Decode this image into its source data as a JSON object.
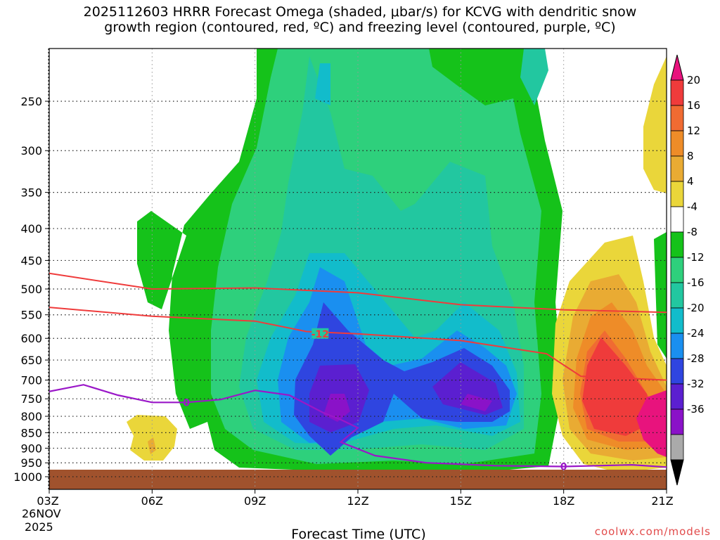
{
  "title": {
    "line1": "2025112603 HRRR Forecast Omega (shaded, μbar/s) for KCVG with dendritic snow",
    "line2": "growth region (contoured, red, ºC) and freezing level (contoured, purple, ºC)"
  },
  "footer": {
    "credit": "coolwx.com/models"
  },
  "chart_data": {
    "type": "heatmap",
    "title": "2025112603 HRRR Forecast Omega (shaded, μbar/s) for KCVG with dendritic snow growth region (contoured, red, ºC) and freezing level (contoured, purple, ºC)",
    "xlabel": "Forecast Time (UTC)",
    "x_ticks": [
      "03Z",
      "06Z",
      "09Z",
      "12Z",
      "15Z",
      "18Z",
      "21Z"
    ],
    "x_hours": [
      3,
      6,
      9,
      12,
      15,
      18,
      21
    ],
    "x_date_label": [
      "26NOV",
      "2025"
    ],
    "y_ticks": [
      250,
      300,
      350,
      400,
      450,
      500,
      550,
      600,
      650,
      700,
      750,
      800,
      850,
      900,
      950,
      1000
    ],
    "y_scale": "log-pressure, decreasing upward",
    "grid": true,
    "colorbar": {
      "levels": [
        20,
        16,
        12,
        8,
        4,
        -4,
        -8,
        -12,
        -16,
        -20,
        -24,
        -28,
        -32,
        -36
      ],
      "colors": [
        "#e8137d",
        "#ef3b3b",
        "#f06b32",
        "#ee8c28",
        "#e9ab33",
        "#ead63a",
        "#ffffff",
        "#15c21a",
        "#2ed07c",
        "#22c7a0",
        "#12bccb",
        "#1a8ff0",
        "#2f45e0",
        "#5b1fd0",
        "#8a12c8",
        "#aaaaaa",
        "#000000"
      ]
    },
    "contours": {
      "dgz_minus12": [
        [
          3,
          472
        ],
        [
          6,
          500
        ],
        [
          9,
          498
        ],
        [
          12,
          507
        ],
        [
          15,
          530
        ],
        [
          18,
          540
        ],
        [
          21,
          545
        ]
      ],
      "dgz_minus18": [
        [
          3,
          535
        ],
        [
          6,
          553
        ],
        [
          9,
          563
        ],
        [
          10.5,
          585
        ],
        [
          12,
          590
        ],
        [
          15,
          605
        ],
        [
          17.5,
          635
        ],
        [
          18.5,
          690
        ],
        [
          21,
          700
        ]
      ],
      "freezing_level_0C": [
        [
          3,
          730
        ],
        [
          4,
          712
        ],
        [
          5,
          740
        ],
        [
          6,
          760
        ],
        [
          7,
          760
        ],
        [
          8,
          752
        ],
        [
          9,
          727
        ],
        [
          10,
          740
        ],
        [
          11,
          790
        ],
        [
          11.5,
          810
        ],
        [
          12,
          835
        ],
        [
          11.5,
          880
        ],
        [
          12.5,
          925
        ],
        [
          14,
          950
        ],
        [
          16,
          960
        ],
        [
          18,
          963
        ],
        [
          20,
          957
        ],
        [
          21,
          965
        ]
      ],
      "labels": [
        {
          "text": "-12",
          "hour": 10.9,
          "hpa": 590
        },
        {
          "text": "0",
          "hour": 7.0,
          "hpa": 760
        },
        {
          "text": "0",
          "hour": 18.0,
          "hpa": 963
        }
      ]
    }
  }
}
